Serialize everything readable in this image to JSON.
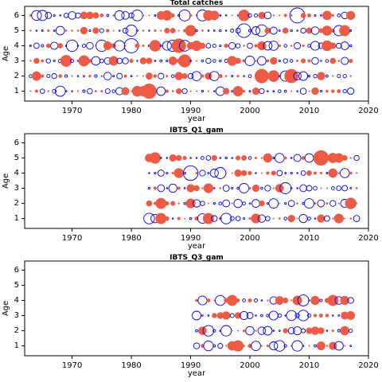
{
  "colors": {
    "positive": "#EE5B45",
    "negative": "#0000EE",
    "axis": "#000000"
  },
  "chart_data": [
    {
      "type": "scatter",
      "subtype": "bubble-residuals",
      "title": "Total catches",
      "xlabel": "year",
      "ylabel": "Age",
      "xlim": [
        1962,
        2020
      ],
      "ylim": [
        0.35,
        6.6
      ],
      "xticks": [
        "1970",
        "1980",
        "1990",
        "2000",
        "2010",
        "2020"
      ],
      "yticks": [
        "1",
        "2",
        "3",
        "4",
        "5",
        "6"
      ],
      "years": [
        1963,
        2017
      ],
      "ages": [
        1,
        2,
        3,
        4,
        5,
        6
      ]
    },
    {
      "type": "scatter",
      "subtype": "bubble-residuals",
      "title": "IBTS_Q1_gam",
      "xlabel": "year",
      "ylabel": "Age",
      "xlim": [
        1962,
        2020
      ],
      "ylim": [
        0.35,
        6.6
      ],
      "xticks": [
        "1970",
        "1980",
        "1990",
        "2000",
        "2010",
        "2020"
      ],
      "yticks": [
        "1",
        "2",
        "3",
        "4",
        "5",
        "6"
      ],
      "years": [
        1983,
        2018
      ],
      "ages": [
        1,
        2,
        3,
        4,
        5
      ]
    },
    {
      "type": "scatter",
      "subtype": "bubble-residuals",
      "title": "IBTS_Q3_gam",
      "xlabel": "year",
      "ylabel": "Age",
      "xlim": [
        1962,
        2020
      ],
      "ylim": [
        0.35,
        6.6
      ],
      "xticks": [
        "1970",
        "1980",
        "1990",
        "2000",
        "2010",
        "2020"
      ],
      "yticks": [
        "1",
        "2",
        "3",
        "4",
        "5",
        "6"
      ],
      "years": [
        1991,
        2017
      ],
      "ages": [
        1,
        2,
        3,
        4
      ]
    }
  ]
}
